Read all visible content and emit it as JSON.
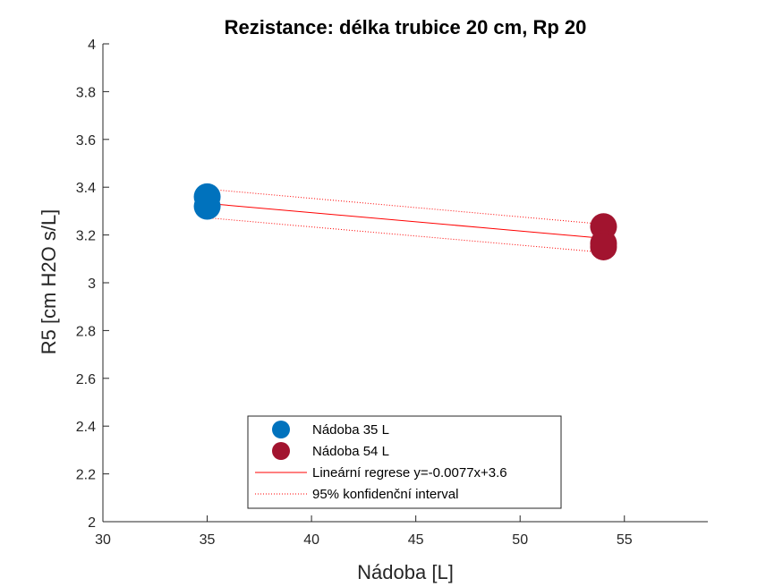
{
  "chart_data": {
    "type": "scatter",
    "title": "Rezistance: délka trubice 20 cm, Rp 20",
    "xlabel": "Nádoba [L]",
    "ylabel": "R5 [cm H2O s/L]",
    "xlim": [
      30,
      59
    ],
    "ylim": [
      2,
      4
    ],
    "xticks": [
      30,
      35,
      40,
      45,
      50,
      55
    ],
    "yticks": [
      2,
      2.2,
      2.4,
      2.6,
      2.8,
      3,
      3.2,
      3.4,
      3.6,
      3.8,
      4
    ],
    "xtick_labels": [
      "30",
      "35",
      "40",
      "45",
      "50",
      "55"
    ],
    "ytick_labels": [
      "2",
      "2.2",
      "2.4",
      "2.6",
      "2.8",
      "3",
      "3.2",
      "3.4",
      "3.6",
      "3.8",
      "4"
    ],
    "grid": false,
    "legend_position": "bottom-center",
    "series": [
      {
        "name": "Nádoba 35 L",
        "kind": "scatter",
        "color": "#0072BD",
        "points": [
          [
            35,
            3.36
          ],
          [
            35,
            3.32
          ]
        ]
      },
      {
        "name": "Nádoba 54 L",
        "kind": "scatter",
        "color": "#A2142F",
        "points": [
          [
            54,
            3.235
          ],
          [
            54,
            3.165
          ],
          [
            54,
            3.15
          ]
        ]
      },
      {
        "name": "Lineární regrese y=-0.0077x+3.6",
        "kind": "line",
        "style": "solid",
        "color": "#FF0000",
        "x": [
          35,
          54
        ],
        "y": [
          3.332,
          3.186
        ]
      },
      {
        "name": "95% konfidenční interval",
        "kind": "line",
        "style": "dotted",
        "color": "#FF0000",
        "bands": [
          {
            "x": [
              35,
              54
            ],
            "y": [
              3.392,
              3.245
            ]
          },
          {
            "x": [
              35,
              54
            ],
            "y": [
              3.272,
              3.127
            ]
          }
        ]
      }
    ]
  }
}
